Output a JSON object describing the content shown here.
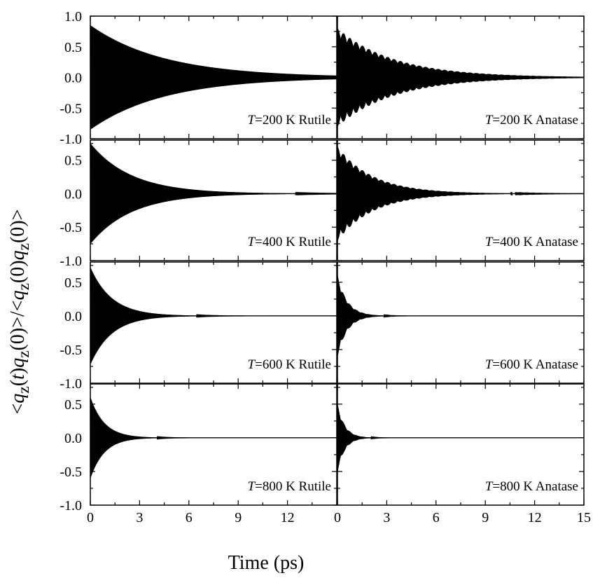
{
  "chart_data": {
    "type": "line",
    "title": "",
    "xlabel": "Time (ps)",
    "ylabel": "<q_z(t)q_z(0)>/<q_z(0)q_z(0)>",
    "xlim": [
      0,
      15
    ],
    "ylim": [
      -1.0,
      1.0
    ],
    "x_ticks": [
      "0",
      "3",
      "6",
      "9",
      "12",
      "15"
    ],
    "x_ticks_left": [
      "0",
      "3",
      "6",
      "9",
      "12"
    ],
    "y_ticks_top_row": [
      "1.0",
      "0.5",
      "0.0",
      "-0.5",
      "-1.0"
    ],
    "y_ticks_other_rows": [
      "0.5",
      "0.0",
      "-0.5",
      "-1.0"
    ],
    "grid": false,
    "panels": [
      {
        "temperature": "200 K",
        "phase": "Rutile",
        "label_prefix": "T",
        "label_rest": "=200 K Rutile",
        "initial_amplitude": 0.85,
        "decay_time_ps": 4.5
      },
      {
        "temperature": "200 K",
        "phase": "Anatase",
        "label_prefix": "T",
        "label_rest": "=200 K Anatase",
        "initial_amplitude": 0.8,
        "decay_time_ps": 3.5
      },
      {
        "temperature": "400 K",
        "phase": "Rutile",
        "label_prefix": "T",
        "label_rest": "=400 K Rutile",
        "initial_amplitude": 0.75,
        "decay_time_ps": 2.5
      },
      {
        "temperature": "400 K",
        "phase": "Anatase",
        "label_prefix": "T",
        "label_rest": "=400 K Anatase",
        "initial_amplitude": 0.7,
        "decay_time_ps": 2.2
      },
      {
        "temperature": "600 K",
        "phase": "Rutile",
        "label_prefix": "T",
        "label_rest": "=600 K Rutile",
        "initial_amplitude": 0.72,
        "decay_time_ps": 1.3
      },
      {
        "temperature": "600 K",
        "phase": "Anatase",
        "label_prefix": "T",
        "label_rest": "=600 K Anatase",
        "initial_amplitude": 0.6,
        "decay_time_ps": 0.6
      },
      {
        "temperature": "800 K",
        "phase": "Rutile",
        "label_prefix": "T",
        "label_rest": "=800 K Rutile",
        "initial_amplitude": 0.6,
        "decay_time_ps": 0.85
      },
      {
        "temperature": "800 K",
        "phase": "Anatase",
        "label_prefix": "T",
        "label_rest": "=800 K Anatase",
        "initial_amplitude": 0.5,
        "decay_time_ps": 0.45
      }
    ]
  },
  "colors": {
    "line": "#000000",
    "background": "#ffffff"
  }
}
